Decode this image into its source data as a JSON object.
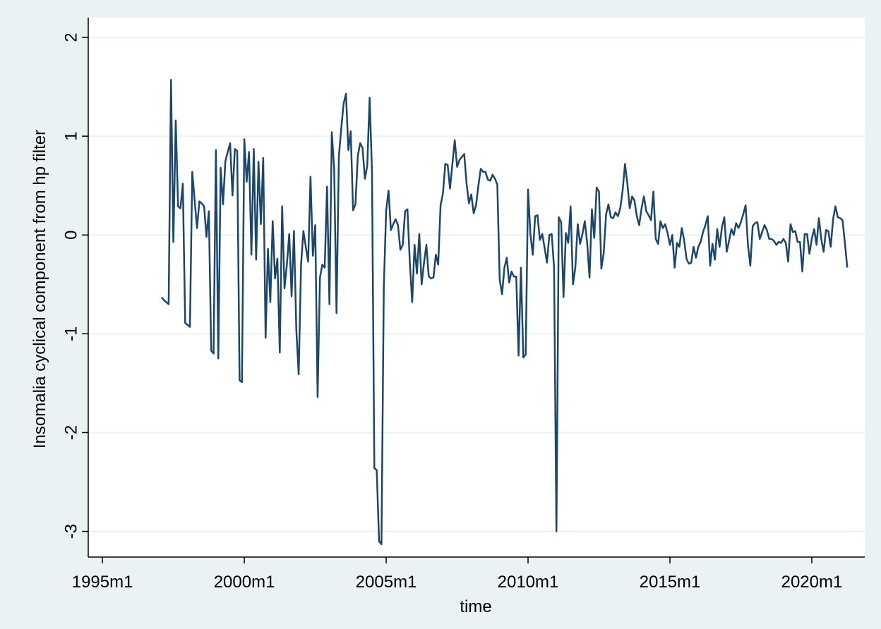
{
  "chart_data": {
    "type": "line",
    "xlabel": "time",
    "ylabel": "Insomalia cyclical component from hp filter",
    "color": "#1a476f",
    "grid": true,
    "xlim": [
      414,
      742.4
    ],
    "ylim": [
      -3.26,
      2.2
    ],
    "xticks": [
      {
        "value": 420,
        "label": "1995m1"
      },
      {
        "value": 480,
        "label": "2000m1"
      },
      {
        "value": 540,
        "label": "2005m1"
      },
      {
        "value": 600,
        "label": "2010m1"
      },
      {
        "value": 660,
        "label": "2015m1"
      },
      {
        "value": 720,
        "label": "2020m1"
      }
    ],
    "yticks": [
      -3,
      -2,
      -1,
      0,
      1,
      2
    ],
    "x": [
      445,
      446,
      447,
      448,
      449,
      450,
      451,
      452,
      453,
      454,
      455,
      456,
      457,
      458,
      459,
      460,
      461,
      462,
      463,
      464,
      465,
      466,
      467,
      468,
      469,
      470,
      471,
      472,
      473,
      474,
      475,
      476,
      477,
      478,
      479,
      480,
      481,
      482,
      483,
      484,
      485,
      486,
      487,
      488,
      489,
      490,
      491,
      492,
      493,
      494,
      495,
      496,
      497,
      498,
      499,
      500,
      501,
      502,
      503,
      504,
      505,
      506,
      507,
      508,
      509,
      510,
      511,
      512,
      513,
      514,
      515,
      516,
      517,
      518,
      519,
      520,
      521,
      522,
      523,
      524,
      525,
      526,
      527,
      528,
      529,
      530,
      531,
      532,
      533,
      534,
      535,
      536,
      537,
      538,
      539,
      540,
      541,
      542,
      543,
      544,
      545,
      546,
      547,
      548,
      549,
      550,
      551,
      552,
      553,
      554,
      555,
      556,
      557,
      558,
      559,
      560,
      561,
      562,
      563,
      564,
      565,
      566,
      567,
      568,
      569,
      570,
      571,
      572,
      573,
      574,
      575,
      576,
      577,
      578,
      579,
      580,
      581,
      582,
      583,
      584,
      585,
      586,
      587,
      588,
      589,
      590,
      591,
      592,
      593,
      594,
      595,
      596,
      597,
      598,
      599,
      600,
      601,
      602,
      603,
      604,
      605,
      606,
      607,
      608,
      609,
      610,
      611,
      612,
      613,
      614,
      615,
      616,
      617,
      618,
      619,
      620,
      621,
      622,
      623,
      624,
      625,
      626,
      627,
      628,
      629,
      630,
      631,
      632,
      633,
      634,
      635,
      636,
      637,
      638,
      639,
      640,
      641,
      642,
      643,
      644,
      645,
      646,
      647,
      648,
      649,
      650,
      651,
      652,
      653,
      654,
      655,
      656,
      657,
      658,
      659,
      660,
      661,
      662,
      663,
      664,
      665,
      666,
      667,
      668,
      669,
      670,
      671,
      672,
      673,
      674,
      675,
      676,
      677,
      678,
      679,
      680,
      681,
      682,
      683,
      684,
      685,
      686,
      687,
      688,
      689,
      690,
      691,
      692,
      693,
      694,
      695,
      696,
      697,
      698,
      699,
      700,
      701,
      702,
      703,
      704,
      705,
      706,
      707,
      708,
      709,
      710,
      711,
      712,
      713,
      714,
      715,
      716,
      717,
      718,
      719,
      720,
      721,
      722,
      723,
      724,
      725,
      726,
      727,
      728,
      729,
      730,
      731,
      732,
      733,
      734,
      735
    ],
    "values": [
      -0.63,
      -0.66,
      -0.68,
      -0.7,
      1.57,
      -0.07,
      1.16,
      0.29,
      0.27,
      0.52,
      -0.89,
      -0.91,
      -0.93,
      0.64,
      0.35,
      0.07,
      0.34,
      0.32,
      0.29,
      -0.02,
      0.24,
      -1.17,
      -1.2,
      0.86,
      -1.25,
      0.68,
      0.31,
      0.75,
      0.84,
      0.93,
      0.4,
      0.87,
      0.85,
      -1.47,
      -1.49,
      0.97,
      0.54,
      0.84,
      -0.2,
      0.87,
      -0.25,
      0.74,
      0.11,
      0.78,
      -1.04,
      -0.14,
      -0.68,
      0.14,
      -0.44,
      -0.24,
      -1.19,
      0.29,
      -0.54,
      -0.3,
      0.01,
      -0.62,
      0.04,
      -0.96,
      -1.41,
      -0.3,
      0.04,
      -0.12,
      -0.27,
      0.59,
      -0.21,
      0.1,
      -1.64,
      -0.43,
      -0.3,
      -0.33,
      0.49,
      -0.7,
      1.04,
      0.67,
      -0.79,
      0.8,
      1.08,
      1.33,
      1.43,
      0.86,
      1.05,
      0.25,
      0.31,
      0.8,
      0.93,
      0.88,
      0.57,
      0.7,
      1.39,
      0.64,
      -2.36,
      -2.38,
      -3.1,
      -3.13,
      -0.52,
      0.25,
      0.45,
      0.05,
      0.11,
      0.16,
      0.1,
      -0.15,
      -0.1,
      0.24,
      0.26,
      -0.28,
      -0.68,
      -0.1,
      -0.39,
      0.01,
      -0.5,
      -0.28,
      -0.1,
      -0.42,
      -0.44,
      -0.43,
      -0.2,
      -0.3,
      0.3,
      0.42,
      0.72,
      0.71,
      0.47,
      0.72,
      0.96,
      0.69,
      0.76,
      0.79,
      0.82,
      0.52,
      0.32,
      0.41,
      0.22,
      0.3,
      0.5,
      0.67,
      0.64,
      0.64,
      0.56,
      0.55,
      0.61,
      0.57,
      0.51,
      -0.45,
      -0.6,
      -0.33,
      -0.23,
      -0.48,
      -0.37,
      -0.42,
      -0.42,
      -1.22,
      -0.33,
      -1.24,
      -1.21,
      0.46,
      0.01,
      -0.2,
      0.19,
      0.2,
      -0.05,
      0.01,
      -0.13,
      -0.28,
      0.0,
      0.01,
      -0.33,
      -3.0,
      0.18,
      0.13,
      -0.63,
      0.02,
      -0.08,
      0.29,
      -0.5,
      -0.33,
      0.11,
      -0.09,
      0.01,
      0.14,
      -0.08,
      -0.43,
      0.26,
      -0.03,
      0.48,
      0.44,
      -0.34,
      -0.18,
      0.21,
      0.31,
      0.18,
      0.17,
      0.23,
      0.19,
      0.27,
      0.45,
      0.72,
      0.52,
      0.27,
      0.39,
      0.35,
      0.19,
      0.1,
      0.27,
      0.39,
      0.24,
      0.2,
      0.15,
      0.44,
      -0.04,
      -0.09,
      0.14,
      0.07,
      0.11,
      0.02,
      -0.1,
      0.0,
      -0.33,
      -0.08,
      -0.12,
      0.07,
      -0.05,
      -0.24,
      -0.29,
      -0.28,
      -0.12,
      -0.23,
      -0.12,
      -0.07,
      0.03,
      0.1,
      0.19,
      -0.31,
      -0.09,
      -0.25,
      0.06,
      -0.12,
      0.08,
      0.18,
      -0.17,
      -0.06,
      0.06,
      0.0,
      0.12,
      0.07,
      0.13,
      0.21,
      0.3,
      -0.1,
      -0.31,
      0.09,
      0.12,
      0.13,
      -0.04,
      0.03,
      0.1,
      0.05,
      -0.04,
      -0.04,
      -0.06,
      -0.1,
      -0.07,
      -0.08,
      -0.04,
      -0.08,
      -0.27,
      0.11,
      0.03,
      0.04,
      -0.07,
      -0.07,
      -0.37,
      0.01,
      0.01,
      -0.19,
      -0.04,
      0.06,
      -0.1,
      0.17,
      -0.04,
      -0.17,
      0.05,
      0.04,
      -0.12,
      0.16,
      0.29,
      0.18,
      0.17,
      0.15,
      -0.08,
      -0.33
    ]
  }
}
